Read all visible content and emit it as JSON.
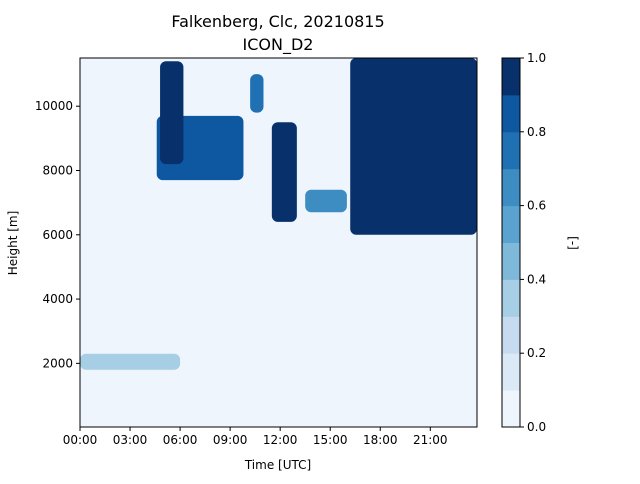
{
  "chart_data": {
    "type": "heatmap",
    "title": "Falkenberg, Clc, 20210815",
    "subtitle": "ICON_D2",
    "xlabel": "Time [UTC]",
    "ylabel": "Height [m]",
    "colorbar_label": "[-]",
    "x_ticks": [
      "00:00",
      "03:00",
      "06:00",
      "09:00",
      "12:00",
      "15:00",
      "18:00",
      "21:00"
    ],
    "x_tick_hours": [
      0,
      3,
      6,
      9,
      12,
      15,
      18,
      21
    ],
    "xlim_hours": [
      0,
      23.8
    ],
    "y_ticks": [
      "2000",
      "4000",
      "6000",
      "8000",
      "10000"
    ],
    "y_tick_values": [
      2000,
      4000,
      6000,
      8000,
      10000
    ],
    "ylim": [
      20,
      11500
    ],
    "colorbar_ticks": [
      "0.0",
      "0.2",
      "0.4",
      "0.6",
      "0.8",
      "1.0"
    ],
    "colorbar_tick_values": [
      0.0,
      0.2,
      0.4,
      0.6,
      0.8,
      1.0
    ],
    "levels": [
      0.0,
      0.1,
      0.2,
      0.3,
      0.4,
      0.5,
      0.6,
      0.7,
      0.8,
      0.9,
      1.0
    ],
    "level_colors": [
      "#eef5fc",
      "#dbe9f6",
      "#c6dbef",
      "#a6cee4",
      "#7fb9da",
      "#5aa2cf",
      "#3d8dc3",
      "#2070b4",
      "#0e58a2",
      "#08306b"
    ],
    "background_value": 0.0,
    "cloud_features": [
      {
        "name": "cirrus-band-early",
        "t_start": 4.6,
        "t_end": 9.8,
        "h_bottom": 7700,
        "h_top": 9700,
        "value": 0.85
      },
      {
        "name": "cirrus-tower-0500",
        "t_start": 4.8,
        "t_end": 6.2,
        "h_bottom": 8200,
        "h_top": 11400,
        "value": 0.9
      },
      {
        "name": "cloud-1000",
        "t_start": 10.2,
        "t_end": 11.0,
        "h_bottom": 9800,
        "h_top": 11000,
        "value": 0.7
      },
      {
        "name": "midlevel-1200",
        "t_start": 11.5,
        "t_end": 13.0,
        "h_bottom": 6400,
        "h_top": 9500,
        "value": 0.95
      },
      {
        "name": "layer-1400",
        "t_start": 13.5,
        "t_end": 16.0,
        "h_bottom": 6700,
        "h_top": 7400,
        "value": 0.6
      },
      {
        "name": "upper-mass-1800",
        "t_start": 16.2,
        "t_end": 23.8,
        "h_bottom": 6000,
        "h_top": 11500,
        "value": 0.95
      },
      {
        "name": "low-cloud-morning",
        "t_start": 0.0,
        "t_end": 6.0,
        "h_bottom": 1800,
        "h_top": 2300,
        "value": 0.35
      }
    ]
  }
}
